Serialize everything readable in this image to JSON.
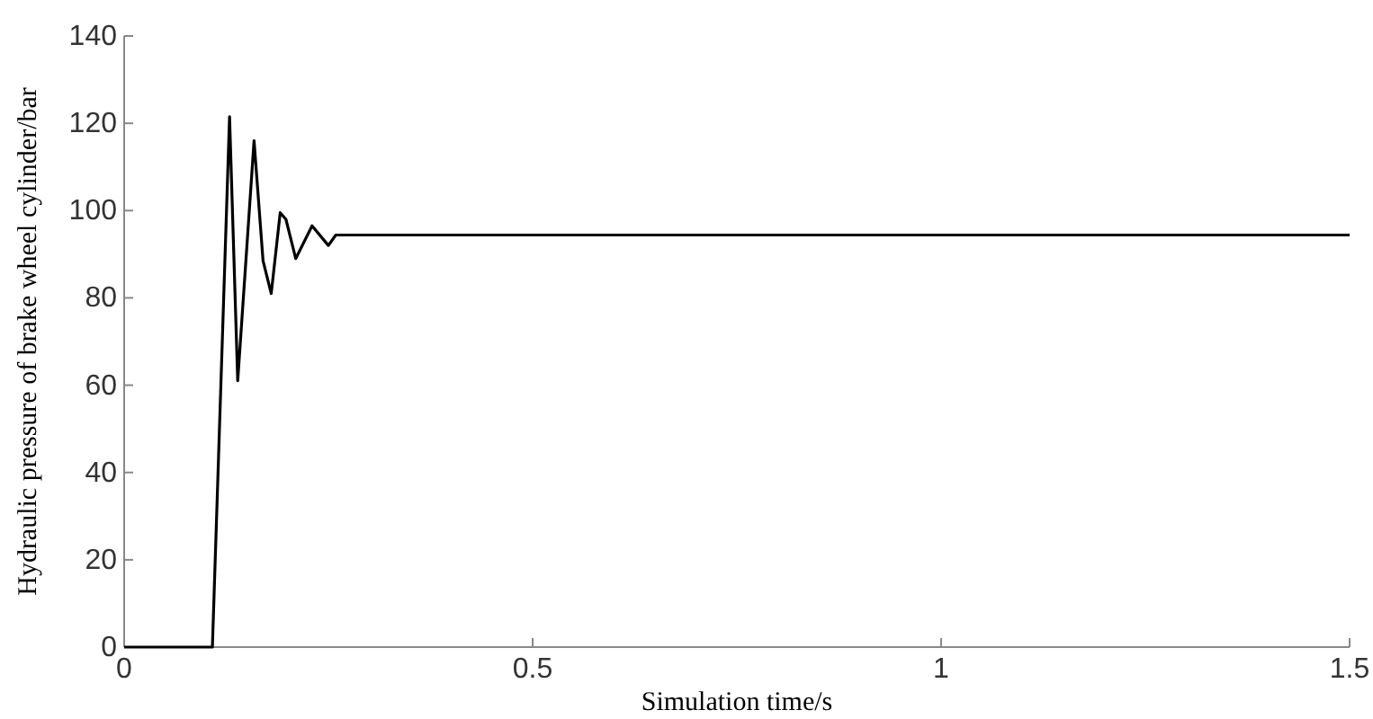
{
  "chart_data": {
    "type": "line",
    "xlabel": "Simulation time/s",
    "ylabel": "Hydraulic pressure of brake wheel cylinder/bar",
    "x": [
      0,
      0.108,
      0.129,
      0.139,
      0.159,
      0.17,
      0.18,
      0.191,
      0.198,
      0.21,
      0.23,
      0.25,
      0.259,
      1.5
    ],
    "series": [
      {
        "color": "#000000",
        "values": [
          0,
          0,
          121.5,
          61,
          116,
          88.5,
          81,
          99.5,
          98,
          89,
          96.5,
          92,
          94.4,
          94.4
        ]
      }
    ],
    "xlim": [
      0,
      1.5
    ],
    "xticks": [
      0,
      0.5,
      1,
      1.5
    ],
    "ylim": [
      0,
      140
    ],
    "yticks": [
      0,
      20,
      40,
      60,
      80,
      100,
      120,
      140
    ],
    "grid": false
  }
}
